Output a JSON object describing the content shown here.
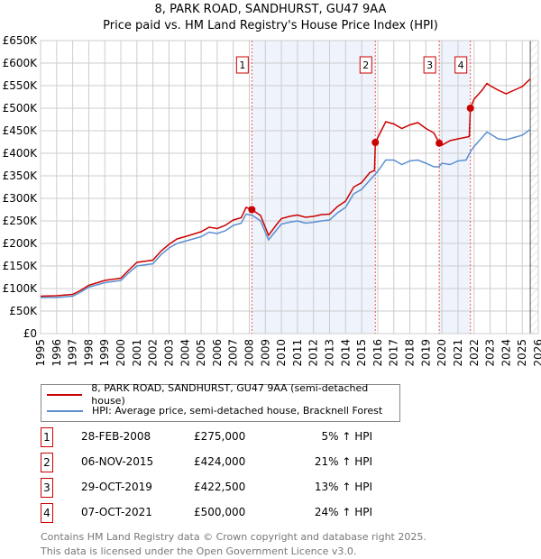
{
  "chart_data": {
    "type": "line",
    "title": "8, PARK ROAD, SANDHURST, GU47 9AA",
    "subtitle": "Price paid vs. HM Land Registry's House Price Index (HPI)",
    "xlim": [
      1995,
      2026
    ],
    "ylim": [
      0,
      650000
    ],
    "x_ticks": [
      "1995",
      "1996",
      "1997",
      "1998",
      "1999",
      "2000",
      "2001",
      "2002",
      "2003",
      "2004",
      "2005",
      "2006",
      "2007",
      "2008",
      "2009",
      "2010",
      "2011",
      "2012",
      "2013",
      "2014",
      "2015",
      "2016",
      "2017",
      "2018",
      "2019",
      "2020",
      "2021",
      "2022",
      "2023",
      "2024",
      "2025",
      "2026"
    ],
    "y_ticks": [
      "£0",
      "£50K",
      "£100K",
      "£150K",
      "£200K",
      "£250K",
      "£300K",
      "£350K",
      "£400K",
      "£450K",
      "£500K",
      "£550K",
      "£600K",
      "£650K"
    ],
    "grid": true,
    "series": [
      {
        "name": "8, PARK ROAD, SANDHURST, GU47 9AA (semi-detached house)",
        "color": "#cc0000",
        "x": [
          1995,
          1996,
          1997,
          1997.5,
          1998,
          1999,
          2000,
          2000.5,
          2001,
          2002,
          2002.5,
          2003,
          2003.5,
          2004,
          2005,
          2005.5,
          2006,
          2006.5,
          2007,
          2007.5,
          2007.8,
          2008.16,
          2008.7,
          2009.2,
          2009.7,
          2010,
          2010.5,
          2011,
          2011.5,
          2012,
          2012.5,
          2013,
          2013.5,
          2014,
          2014.5,
          2015,
          2015.5,
          2015.8,
          2015.85,
          2016.5,
          2017,
          2017.5,
          2018,
          2018.5,
          2019,
          2019.5,
          2019.83,
          2020,
          2020.5,
          2021,
          2021.7,
          2021.77,
          2022,
          2022.5,
          2022.8,
          2023,
          2023.5,
          2024,
          2024.5,
          2025,
          2025.5
        ],
        "y": [
          83000,
          84000,
          87000,
          96000,
          107000,
          118000,
          123000,
          141000,
          158000,
          163000,
          183000,
          198000,
          210000,
          215000,
          226000,
          236000,
          233000,
          240000,
          252000,
          257000,
          280000,
          275000,
          262000,
          218000,
          242000,
          255000,
          260000,
          263000,
          258000,
          260000,
          264000,
          265000,
          282000,
          294000,
          325000,
          335000,
          357000,
          362000,
          424000,
          470000,
          465000,
          455000,
          463000,
          468000,
          455000,
          445000,
          422500,
          418000,
          428000,
          432000,
          437000,
          500000,
          520000,
          540000,
          555000,
          550000,
          540000,
          532000,
          540000,
          548000,
          565000
        ]
      },
      {
        "name": "HPI: Average price, semi-detached house, Bracknell Forest",
        "color": "#5b8fd0",
        "x": [
          1995,
          1996,
          1997,
          1997.5,
          1998,
          1999,
          2000,
          2000.5,
          2001,
          2002,
          2002.5,
          2003,
          2003.5,
          2004,
          2005,
          2005.5,
          2006,
          2006.5,
          2007,
          2007.5,
          2007.8,
          2008.2,
          2008.7,
          2009.2,
          2009.7,
          2010,
          2010.5,
          2011,
          2011.5,
          2012,
          2012.5,
          2013,
          2013.5,
          2014,
          2014.5,
          2015,
          2015.5,
          2016,
          2016.5,
          2017,
          2017.5,
          2018,
          2018.5,
          2019,
          2019.5,
          2019.8,
          2020,
          2020.5,
          2021,
          2021.5,
          2021.8,
          2022,
          2022.5,
          2022.8,
          2023,
          2023.5,
          2024,
          2024.5,
          2025,
          2025.5
        ],
        "y": [
          80000,
          80000,
          83000,
          92000,
          103000,
          113000,
          118000,
          135000,
          150000,
          155000,
          175000,
          190000,
          200000,
          205000,
          215000,
          225000,
          222000,
          228000,
          240000,
          245000,
          265000,
          262000,
          250000,
          208000,
          230000,
          243000,
          247000,
          250000,
          245000,
          247000,
          250000,
          252000,
          268000,
          280000,
          310000,
          320000,
          340000,
          360000,
          385000,
          385000,
          375000,
          383000,
          385000,
          378000,
          370000,
          370000,
          378000,
          375000,
          383000,
          385000,
          405000,
          415000,
          435000,
          447000,
          443000,
          432000,
          430000,
          435000,
          440000,
          453000
        ]
      }
    ],
    "sales": [
      {
        "label": "1",
        "x": 2008.16,
        "price": 275000,
        "date": "28-FEB-2008",
        "price_text": "£275,000",
        "hpi": "5% ↑ HPI"
      },
      {
        "label": "2",
        "x": 2015.85,
        "price": 424000,
        "date": "06-NOV-2015",
        "price_text": "£424,000",
        "hpi": "21% ↑ HPI"
      },
      {
        "label": "3",
        "x": 2019.83,
        "price": 422500,
        "date": "29-OCT-2019",
        "price_text": "£422,500",
        "hpi": "13% ↑ HPI"
      },
      {
        "label": "4",
        "x": 2021.77,
        "price": 500000,
        "date": "07-OCT-2021",
        "price_text": "£500,000",
        "hpi": "24% ↑ HPI"
      }
    ],
    "shaded": [
      [
        2008.16,
        2015.85
      ],
      [
        2019.83,
        2021.77
      ]
    ],
    "forecast_start": 2025.5
  },
  "footer": {
    "line1": "Contains HM Land Registry data © Crown copyright and database right 2025.",
    "line2": "This data is licensed under the Open Government Licence v3.0."
  }
}
